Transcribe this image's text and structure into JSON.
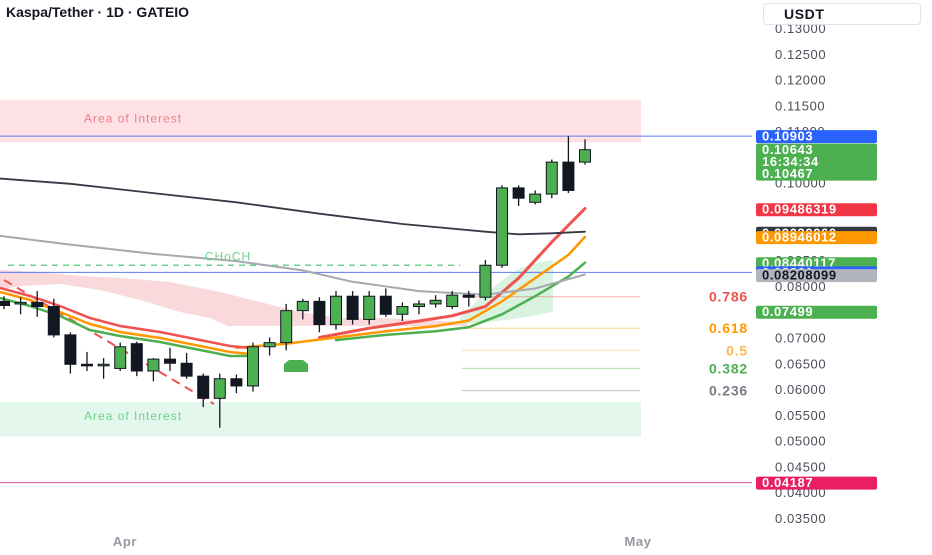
{
  "header": {
    "title": "Kaspa/Tether · 1D · GATEIO"
  },
  "currency_button": {
    "label": "USDT"
  },
  "colors": {
    "bull": "#4caf50",
    "bear": "#131722",
    "ema_red": "#ef5350",
    "ema_orange": "#ff9800",
    "ema_green": "#4caf50",
    "sma_dark": "#363a45",
    "sma_grey": "#a7a9b0",
    "supply_zone": "#fde1e4",
    "demand_zone": "#e4f7ec",
    "blue_line": "#5b7cf0",
    "pink_line": "#d048a0"
  },
  "chart_data": {
    "type": "candlestick",
    "title": "Kaspa/Tether · 1D · GATEIO",
    "y_unit": "USDT",
    "ylim": [
      0.0335,
      0.136
    ],
    "y_ticks": [
      "0.13000",
      "0.12500",
      "0.12000",
      "0.11500",
      "0.11000",
      "0.10500",
      "0.10000",
      "0.09500",
      "0.09000",
      "0.08500",
      "0.08000",
      "0.07500",
      "0.07000",
      "0.06500",
      "0.06000",
      "0.05500",
      "0.05000",
      "0.04500",
      "0.04000",
      "0.03500"
    ],
    "x_labels": [
      "Apr",
      "May"
    ],
    "candles": [
      {
        "o": 0.077,
        "h": 0.078,
        "l": 0.0755,
        "c": 0.0762
      },
      {
        "o": 0.0765,
        "h": 0.0778,
        "l": 0.0745,
        "c": 0.0768
      },
      {
        "o": 0.0768,
        "h": 0.079,
        "l": 0.074,
        "c": 0.076
      },
      {
        "o": 0.076,
        "h": 0.0775,
        "l": 0.07,
        "c": 0.0705
      },
      {
        "o": 0.0705,
        "h": 0.071,
        "l": 0.063,
        "c": 0.0648
      },
      {
        "o": 0.0648,
        "h": 0.0672,
        "l": 0.0635,
        "c": 0.0645
      },
      {
        "o": 0.0645,
        "h": 0.066,
        "l": 0.062,
        "c": 0.0648
      },
      {
        "o": 0.064,
        "h": 0.069,
        "l": 0.0635,
        "c": 0.0682
      },
      {
        "o": 0.0688,
        "h": 0.0692,
        "l": 0.0625,
        "c": 0.0635
      },
      {
        "o": 0.0635,
        "h": 0.066,
        "l": 0.0615,
        "c": 0.0658
      },
      {
        "o": 0.0658,
        "h": 0.068,
        "l": 0.0635,
        "c": 0.065
      },
      {
        "o": 0.065,
        "h": 0.067,
        "l": 0.062,
        "c": 0.0625
      },
      {
        "o": 0.0625,
        "h": 0.063,
        "l": 0.0565,
        "c": 0.0582
      },
      {
        "o": 0.0582,
        "h": 0.063,
        "l": 0.0525,
        "c": 0.062
      },
      {
        "o": 0.062,
        "h": 0.0628,
        "l": 0.0592,
        "c": 0.0606
      },
      {
        "o": 0.0606,
        "h": 0.069,
        "l": 0.0595,
        "c": 0.0682
      },
      {
        "o": 0.0682,
        "h": 0.07,
        "l": 0.0665,
        "c": 0.069
      },
      {
        "o": 0.069,
        "h": 0.0765,
        "l": 0.0675,
        "c": 0.0752
      },
      {
        "o": 0.0752,
        "h": 0.0775,
        "l": 0.0735,
        "c": 0.077
      },
      {
        "o": 0.077,
        "h": 0.0778,
        "l": 0.071,
        "c": 0.0725
      },
      {
        "o": 0.0725,
        "h": 0.079,
        "l": 0.0715,
        "c": 0.078
      },
      {
        "o": 0.078,
        "h": 0.079,
        "l": 0.0725,
        "c": 0.0735
      },
      {
        "o": 0.0735,
        "h": 0.079,
        "l": 0.0725,
        "c": 0.078
      },
      {
        "o": 0.078,
        "h": 0.0795,
        "l": 0.074,
        "c": 0.0745
      },
      {
        "o": 0.0745,
        "h": 0.0768,
        "l": 0.0732,
        "c": 0.076
      },
      {
        "o": 0.076,
        "h": 0.0772,
        "l": 0.0745,
        "c": 0.0765
      },
      {
        "o": 0.0765,
        "h": 0.0782,
        "l": 0.0758,
        "c": 0.0772
      },
      {
        "o": 0.076,
        "h": 0.079,
        "l": 0.0755,
        "c": 0.0782
      },
      {
        "o": 0.0782,
        "h": 0.079,
        "l": 0.076,
        "c": 0.0778
      },
      {
        "o": 0.0778,
        "h": 0.085,
        "l": 0.0772,
        "c": 0.084
      },
      {
        "o": 0.084,
        "h": 0.0995,
        "l": 0.0835,
        "c": 0.099
      },
      {
        "o": 0.099,
        "h": 0.0995,
        "l": 0.0955,
        "c": 0.097
      },
      {
        "o": 0.0962,
        "h": 0.0985,
        "l": 0.0958,
        "c": 0.0978
      },
      {
        "o": 0.0978,
        "h": 0.1045,
        "l": 0.097,
        "c": 0.104
      },
      {
        "o": 0.104,
        "h": 0.109,
        "l": 0.098,
        "c": 0.0985
      },
      {
        "o": 0.104,
        "h": 0.1084,
        "l": 0.1035,
        "c": 0.1064
      }
    ],
    "moving_averages": [
      {
        "name": "ema-red",
        "values": [
          {
            "x": 19,
            "y": 0.07
          },
          {
            "x": 22,
            "y": 0.0718
          },
          {
            "x": 25,
            "y": 0.0732
          },
          {
            "x": 27,
            "y": 0.0742
          },
          {
            "x": 29,
            "y": 0.076
          },
          {
            "x": 31,
            "y": 0.0815
          },
          {
            "x": 33,
            "y": 0.0885
          },
          {
            "x": 35,
            "y": 0.095
          }
        ]
      },
      {
        "name": "ema-orange",
        "values": [
          {
            "x": 14,
            "y": 0.068
          },
          {
            "x": 17,
            "y": 0.0688
          },
          {
            "x": 20,
            "y": 0.07
          },
          {
            "x": 23,
            "y": 0.0712
          },
          {
            "x": 26,
            "y": 0.0722
          },
          {
            "x": 28,
            "y": 0.0733
          },
          {
            "x": 30,
            "y": 0.077
          },
          {
            "x": 32,
            "y": 0.0815
          },
          {
            "x": 34,
            "y": 0.086
          },
          {
            "x": 35,
            "y": 0.0895
          }
        ]
      },
      {
        "name": "ema-green",
        "values": [
          {
            "x": 20,
            "y": 0.0695
          },
          {
            "x": 23,
            "y": 0.0705
          },
          {
            "x": 26,
            "y": 0.0712
          },
          {
            "x": 28,
            "y": 0.072
          },
          {
            "x": 30,
            "y": 0.0745
          },
          {
            "x": 32,
            "y": 0.078
          },
          {
            "x": 34,
            "y": 0.0818
          },
          {
            "x": 35,
            "y": 0.0845
          }
        ]
      },
      {
        "name": "sma-dark",
        "values": [
          {
            "x": -1,
            "y": 0.101
          },
          {
            "x": 4,
            "y": 0.0998
          },
          {
            "x": 9,
            "y": 0.098
          },
          {
            "x": 14,
            "y": 0.0962
          },
          {
            "x": 19,
            "y": 0.094
          },
          {
            "x": 24,
            "y": 0.092
          },
          {
            "x": 29,
            "y": 0.0905
          },
          {
            "x": 31,
            "y": 0.09
          },
          {
            "x": 33,
            "y": 0.0902
          },
          {
            "x": 35,
            "y": 0.0905
          }
        ]
      },
      {
        "name": "sma-grey",
        "values": [
          {
            "x": -1,
            "y": 0.09
          },
          {
            "x": 4,
            "y": 0.088
          },
          {
            "x": 9,
            "y": 0.0862
          },
          {
            "x": 14,
            "y": 0.0848
          },
          {
            "x": 18,
            "y": 0.083
          },
          {
            "x": 21,
            "y": 0.0808
          },
          {
            "x": 25,
            "y": 0.079
          },
          {
            "x": 29,
            "y": 0.0783
          },
          {
            "x": 32,
            "y": 0.0795
          },
          {
            "x": 35,
            "y": 0.0822
          }
        ]
      }
    ],
    "zones": [
      {
        "label": "Area of Interest",
        "y_top": 0.116,
        "y_bottom": 0.1078,
        "color": "#fde1e4",
        "text_color": "#f07f8b"
      },
      {
        "label": "Area of Interest",
        "y_top": 0.0575,
        "y_bottom": 0.0508,
        "color": "#e4f7ec",
        "text_color": "#6dd28e"
      }
    ],
    "choch": {
      "label": "CHoCH",
      "y": 0.084,
      "color": "#6dd28e"
    },
    "fib_levels": [
      {
        "label": "0.786",
        "y": 0.0779,
        "color": "#ef5350"
      },
      {
        "label": "0.618",
        "y": 0.0718,
        "color": "#ff9800"
      },
      {
        "label": "0.5",
        "y": 0.0675,
        "color": "#ffb74d"
      },
      {
        "label": "0.382",
        "y": 0.064,
        "color": "#4caf50"
      },
      {
        "label": "0.236",
        "y": 0.0597,
        "color": "#787b86"
      }
    ],
    "horizontal_lines": [
      {
        "y": 0.10903,
        "color": "#5b7cf0"
      },
      {
        "y": 0.08261,
        "color": "#5b7cf0"
      },
      {
        "y": 0.04187,
        "color": "#d048a0"
      }
    ],
    "price_tags": [
      {
        "label": "0.10903",
        "y": 0.10903,
        "color": "#2962ff"
      },
      {
        "label": "0.10643",
        "y": 0.10643,
        "color": "#4caf50",
        "extra_lines": [
          "16:34:34",
          "0.10467"
        ]
      },
      {
        "label": "0.09486319",
        "y": 0.09486319,
        "color": "#f23645"
      },
      {
        "label": "0.09030060",
        "y": 0.0903006,
        "color": "#363a45"
      },
      {
        "label": "0.08946012",
        "y": 0.08946012,
        "color": "#ff9800"
      },
      {
        "label": "0.08440117",
        "y": 0.08440117,
        "color": "#4caf50"
      },
      {
        "label": "0.08261",
        "y": 0.08261,
        "color": "#2962ff"
      },
      {
        "label": "0.08208099",
        "y": 0.08208099,
        "color": "#b2b5be",
        "text_color": "#131722"
      },
      {
        "label": "0.07499",
        "y": 0.07499,
        "color": "#4caf50"
      },
      {
        "label": "0.04187",
        "y": 0.04187,
        "color": "#e91e63"
      }
    ]
  }
}
